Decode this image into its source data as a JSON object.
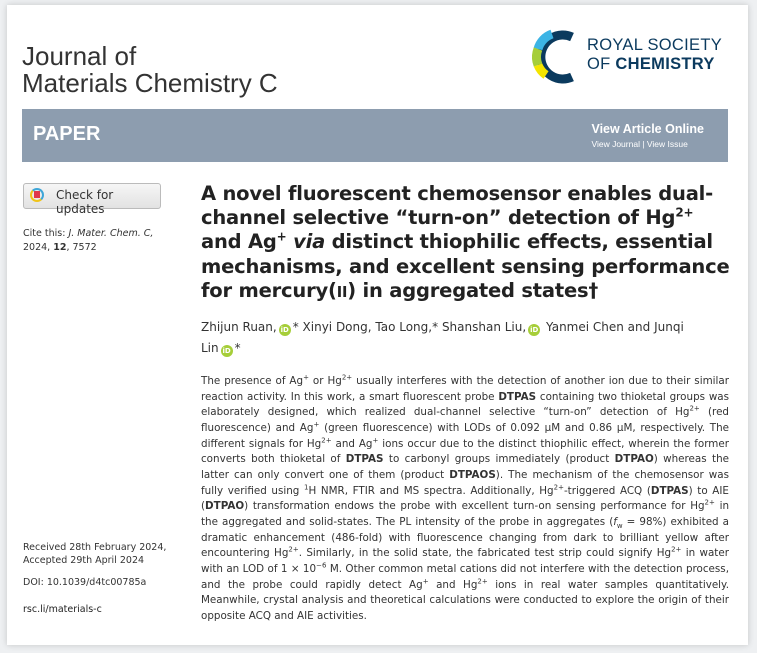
{
  "header": {
    "journal_line1": "Journal of",
    "journal_line2": "Materials Chemistry C",
    "publisher_line1": "ROYAL SOCIETY",
    "publisher_line2_prefix": "OF",
    "publisher_line2_bold": "CHEMISTRY"
  },
  "banner": {
    "type": "PAPER",
    "view_online": "View Article Online",
    "view_journal": "View Journal",
    "separator": " | ",
    "view_issue": "View Issue",
    "color": "#8d9daf"
  },
  "sidebar": {
    "check_updates": "Check for updates",
    "cite_label": "Cite this:",
    "cite_journal": "J. Mater. Chem. C,",
    "cite_year": "2024,",
    "cite_volume": "12",
    "cite_page": ", 7572",
    "received": "Received 28th February 2024,",
    "accepted": "Accepted 29th April 2024",
    "doi": "DOI: 10.1039/d4tc00785a",
    "link": "rsc.li/materials-c"
  },
  "title_runs": [
    {
      "t": "A novel fluorescent chemosensor enables dual-channel selective “turn-on” detection of Hg"
    },
    {
      "t": "2+",
      "s": "sup"
    },
    {
      "t": " and Ag"
    },
    {
      "t": "+",
      "s": "sup"
    },
    {
      "t": " "
    },
    {
      "t": "via",
      "s": "i"
    },
    {
      "t": " distinct thiophilic effects, essential mechanisms, and excellent sensing performance for mercury("
    },
    {
      "t": "II",
      "s": "sc"
    },
    {
      "t": ") in aggregated states†"
    }
  ],
  "authors": [
    {
      "name": "Zhijun Ruan,",
      "orcid": true,
      "star": "*"
    },
    {
      "name": "Xinyi Dong,",
      "orcid": false,
      "star": ""
    },
    {
      "name": "Tao Long,*",
      "orcid": false,
      "star": ""
    },
    {
      "name": "Shanshan Liu,",
      "orcid": true,
      "star": ""
    },
    {
      "name": "Yanmei Chen and",
      "orcid": false,
      "star": ""
    },
    {
      "name": "Junqi Lin",
      "orcid": true,
      "star": "*"
    }
  ],
  "orcid_label": "iD",
  "abstract_runs": [
    {
      "t": "The presence of Ag"
    },
    {
      "t": "+",
      "s": "sup"
    },
    {
      "t": " or Hg"
    },
    {
      "t": "2+",
      "s": "sup"
    },
    {
      "t": " usually interferes with the detection of another ion due to their similar reaction activity. In this work, a smart fluorescent probe "
    },
    {
      "t": "DTPAS",
      "s": "b"
    },
    {
      "t": " containing two thioketal groups was elaborately designed, which realized dual-channel selective “turn-on” detection of Hg"
    },
    {
      "t": "2+",
      "s": "sup"
    },
    {
      "t": " (red fluorescence) and Ag"
    },
    {
      "t": "+",
      "s": "sup"
    },
    {
      "t": " (green fluorescence) with LODs of 0.092 µM and 0.86 µM, respectively. The different signals for Hg"
    },
    {
      "t": "2+",
      "s": "sup"
    },
    {
      "t": " and Ag"
    },
    {
      "t": "+",
      "s": "sup"
    },
    {
      "t": " ions occur due to the distinct thiophilic effect, wherein the former converts both thioketal of "
    },
    {
      "t": "DTPAS",
      "s": "b"
    },
    {
      "t": " to carbonyl groups immediately (product "
    },
    {
      "t": "DTPAO",
      "s": "b"
    },
    {
      "t": ") whereas the latter can only convert one of them (product "
    },
    {
      "t": "DTPAOS",
      "s": "b"
    },
    {
      "t": "). The mechanism of the chemosensor was fully verified using "
    },
    {
      "t": "1",
      "s": "sup"
    },
    {
      "t": "H NMR, FTIR and MS spectra. Additionally, Hg"
    },
    {
      "t": "2+",
      "s": "sup"
    },
    {
      "t": "-triggered ACQ ("
    },
    {
      "t": "DTPAS",
      "s": "b"
    },
    {
      "t": ") to AIE ("
    },
    {
      "t": "DTPAO",
      "s": "b"
    },
    {
      "t": ") transformation endows the probe with excellent turn-on sensing performance for Hg"
    },
    {
      "t": "2+",
      "s": "sup"
    },
    {
      "t": " in the aggregated and solid-states. The PL intensity of the probe in aggregates ("
    },
    {
      "t": "f",
      "s": "i"
    },
    {
      "t": "w",
      "s": "sub"
    },
    {
      "t": " = 98%) exhibited a dramatic enhancement (486-fold) with fluorescence changing from dark to brilliant yellow after encountering Hg"
    },
    {
      "t": "2+",
      "s": "sup"
    },
    {
      "t": ". Similarly, in the solid state, the fabricated test strip could signify Hg"
    },
    {
      "t": "2+",
      "s": "sup"
    },
    {
      "t": " in water with an LOD of 1 × 10"
    },
    {
      "t": "−6",
      "s": "sup"
    },
    {
      "t": " M. Other common metal cations did not interfere with the detection process, and the probe could rapidly detect Ag"
    },
    {
      "t": "+",
      "s": "sup"
    },
    {
      "t": " and Hg"
    },
    {
      "t": "2+",
      "s": "sup"
    },
    {
      "t": " ions in real water samples quantitatively. Meanwhile, crystal analysis and theoretical calculations were conducted to explore the origin of their opposite ACQ and AIE activities."
    }
  ]
}
